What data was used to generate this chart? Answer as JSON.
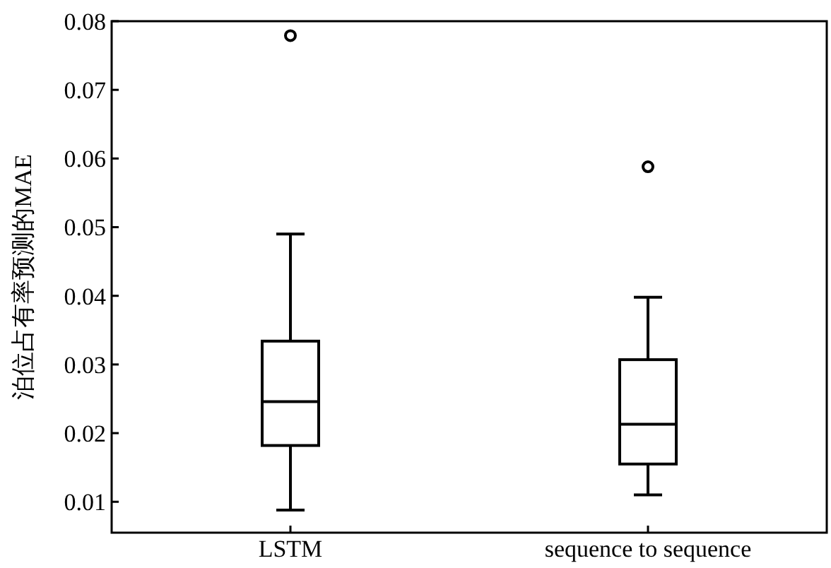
{
  "chart_data": {
    "type": "box",
    "ylabel": "泊位占有率预测的MAE",
    "categories": [
      "LSTM",
      "sequence to sequence"
    ],
    "boxes": [
      {
        "low": 0.0088,
        "q1": 0.0182,
        "median": 0.0246,
        "q3": 0.0334,
        "high": 0.049,
        "outliers": [
          0.0779
        ]
      },
      {
        "low": 0.011,
        "q1": 0.0155,
        "median": 0.0213,
        "q3": 0.0307,
        "high": 0.0398,
        "outliers": [
          0.0588
        ]
      }
    ],
    "color": "#000000",
    "ylim": [
      0.0055,
      0.08
    ],
    "yticks": [
      0.01,
      0.02,
      0.03,
      0.04,
      0.05,
      0.06,
      0.07,
      0.08
    ],
    "grid": false
  }
}
